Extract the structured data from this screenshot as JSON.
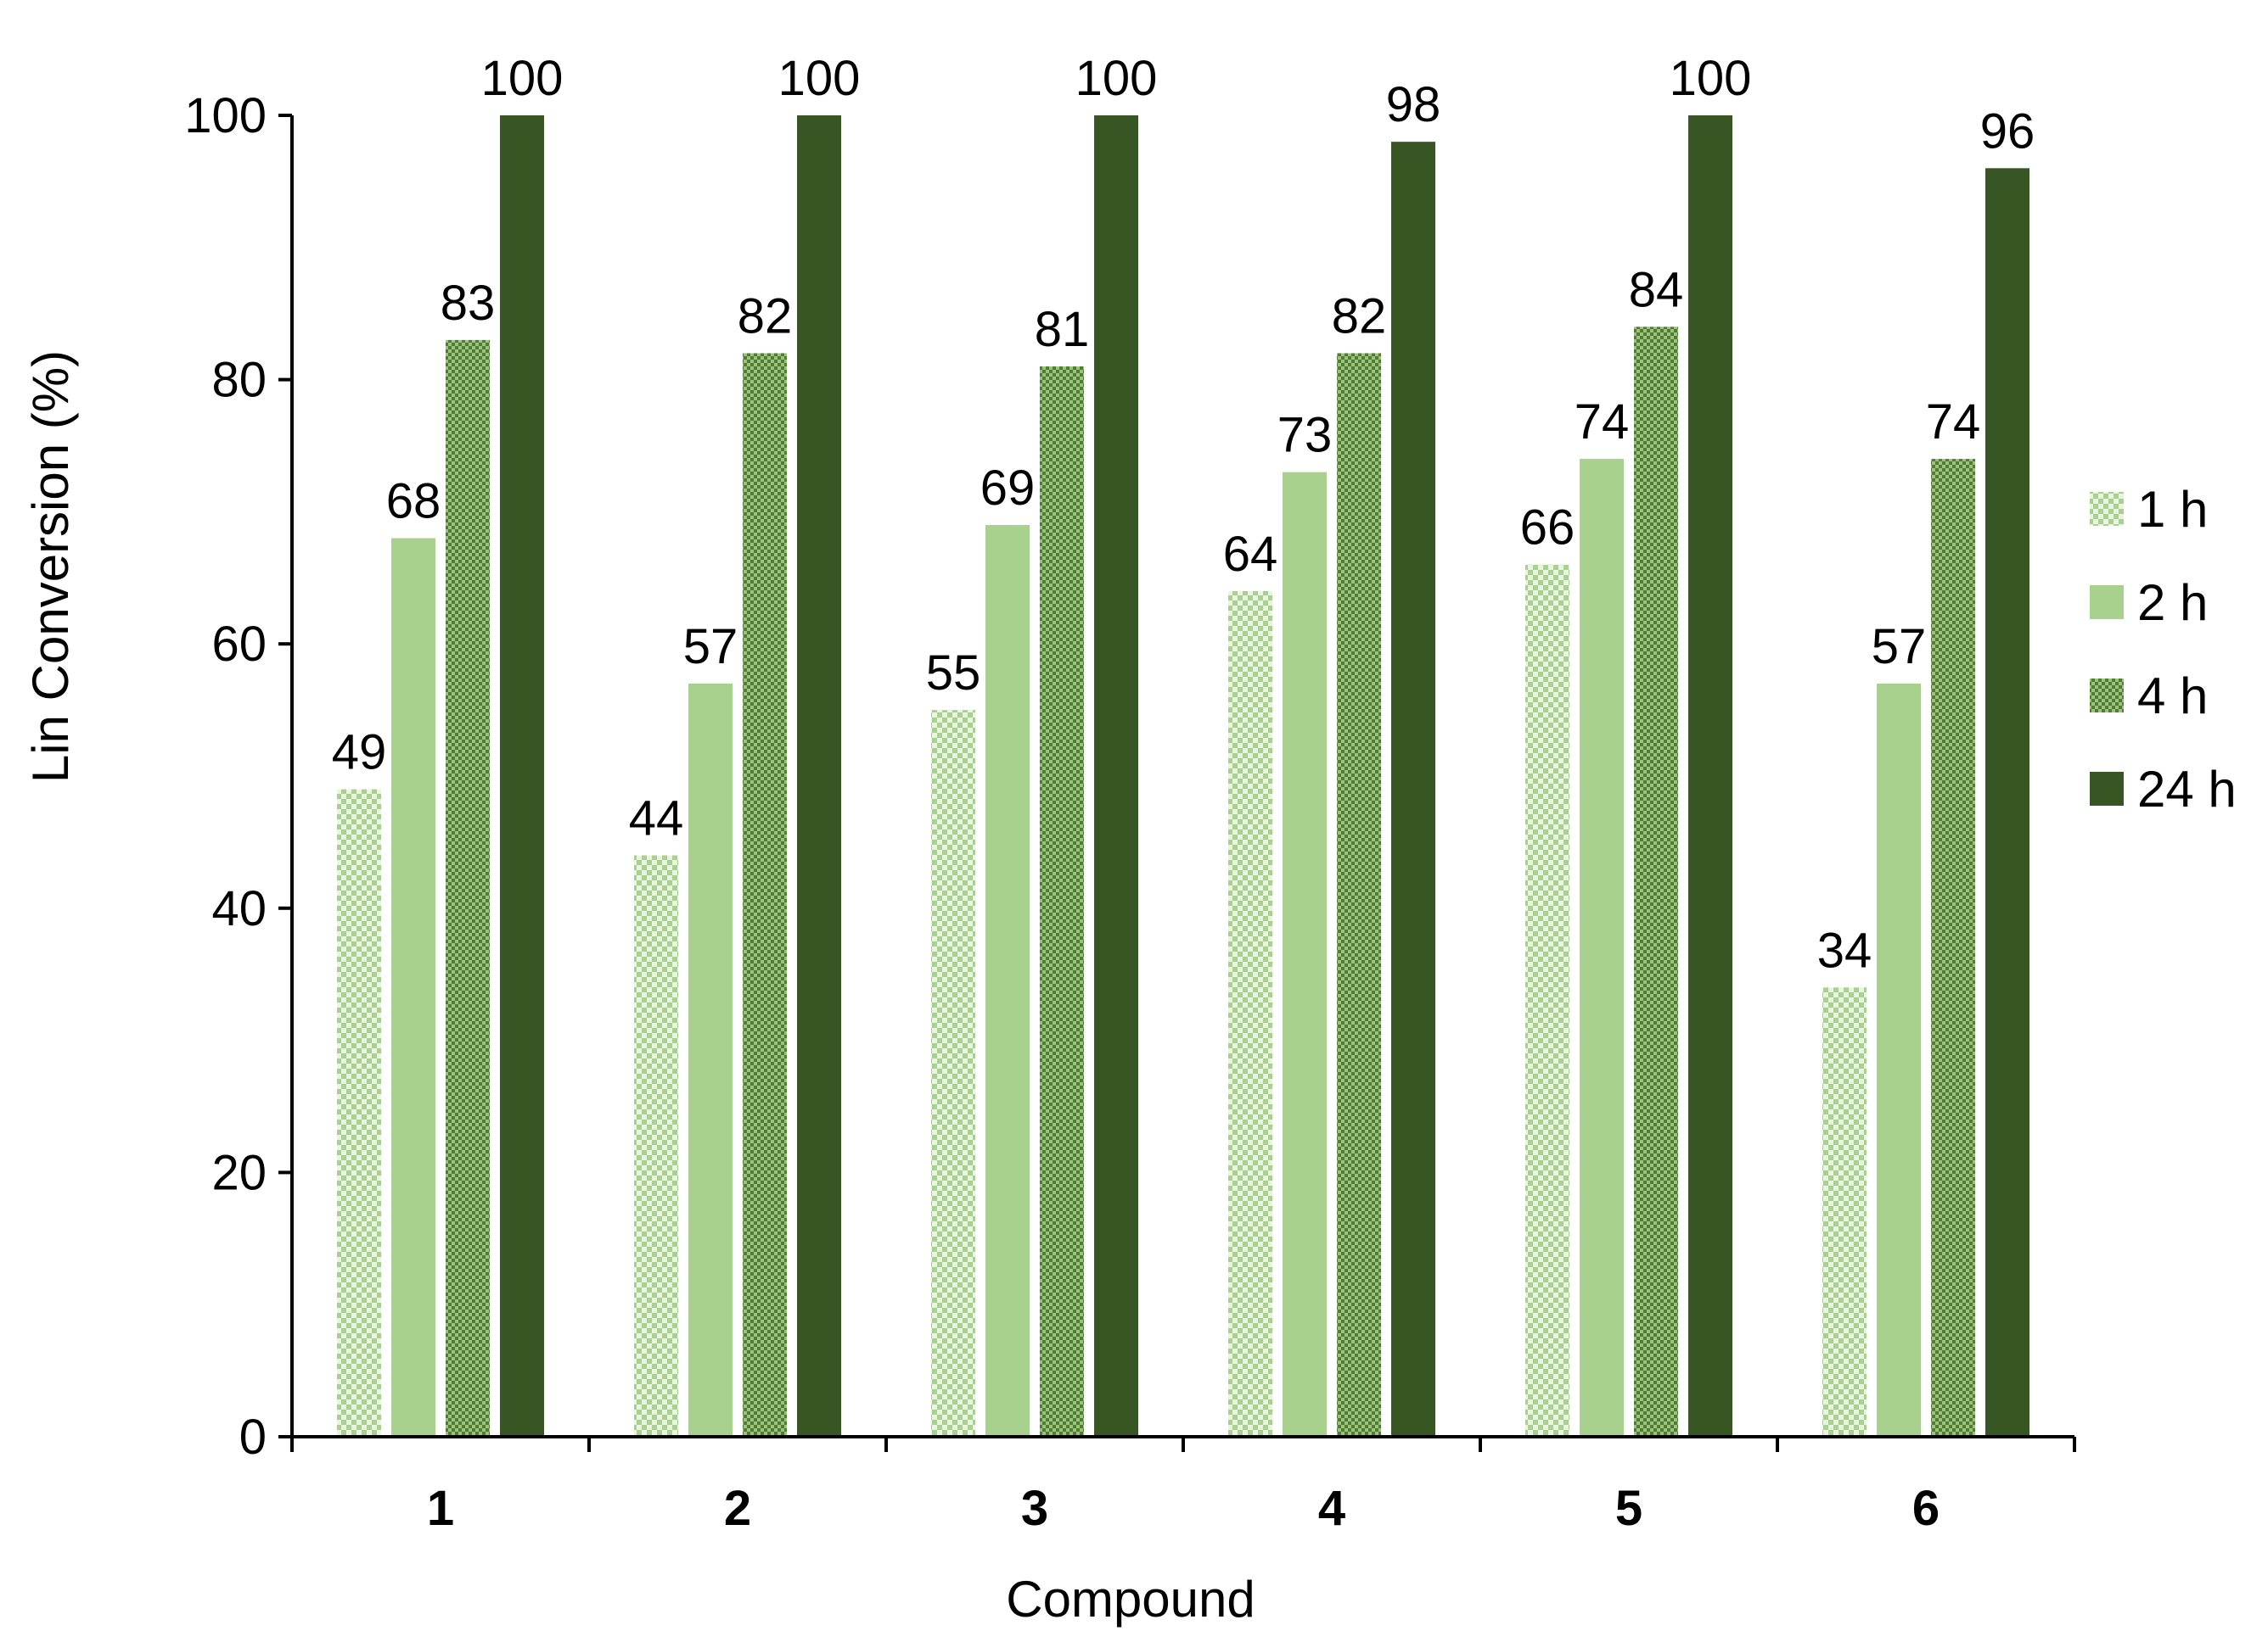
{
  "chart_data": {
    "type": "bar",
    "title": "",
    "xlabel": "Compound",
    "ylabel": "Lin Conversion (%)",
    "ylim": [
      0,
      100
    ],
    "yticks": [
      0,
      20,
      40,
      60,
      80,
      100
    ],
    "categories": [
      "1",
      "2",
      "3",
      "4",
      "5",
      "6"
    ],
    "grid": false,
    "legend_position": "right",
    "series": [
      {
        "name": "1 h",
        "values": [
          49,
          44,
          55,
          64,
          66,
          34
        ],
        "color": "#a9d18e",
        "pattern": "checker-light"
      },
      {
        "name": "2 h",
        "values": [
          68,
          57,
          69,
          73,
          74,
          57
        ],
        "color": "#a9d18e",
        "pattern": "solid"
      },
      {
        "name": "4 h",
        "values": [
          83,
          82,
          81,
          82,
          84,
          74
        ],
        "color": "#548235",
        "pattern": "checker-dense"
      },
      {
        "name": "24 h",
        "values": [
          100,
          100,
          100,
          98,
          100,
          96
        ],
        "color": "#375623",
        "pattern": "solid"
      }
    ]
  }
}
